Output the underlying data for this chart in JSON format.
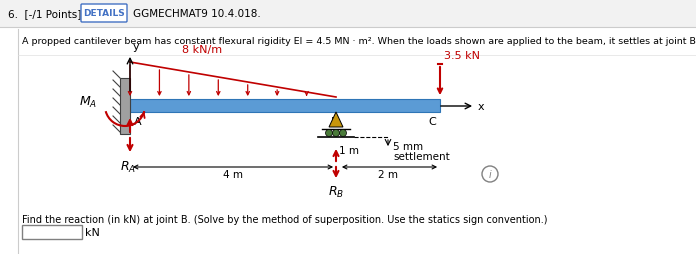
{
  "header_text": "6.  [-/1 Points]",
  "details_label": "DETAILS",
  "problem_code": "GGMECHMAT9 10.4.018.",
  "description": "A propped cantilever beam has constant flexural rigidity EI = 4.5 MN · m². When the loads shown are applied to the beam, it settles at joint B by 5 mm.",
  "question": "Find the reaction (in kN) at joint B. (Solve by the method of superposition. Use the statics sign convention.)",
  "unit": "kN",
  "beam_color": "#5b9bd5",
  "beam_edge_color": "#2e75b6",
  "red_color": "#c00000",
  "wall_color": "#595959",
  "support_fill": "#c8960c",
  "support_green": "#4a7a3a",
  "border_color": "#4472c4",
  "bg_color": "#ffffff",
  "header_bg": "#f2f2f2",
  "dist_load_label": "8 kN/m",
  "point_load_label": "3.5 kN",
  "settlement_label_1": "5 mm",
  "settlement_label_2": "settlement",
  "dim_AB": "4 m",
  "dim_BC": "2 m",
  "dim_1m": "1 m",
  "MA_label": "$M_A$",
  "RA_label": "$R_A$",
  "RB_label": "$R_B$"
}
